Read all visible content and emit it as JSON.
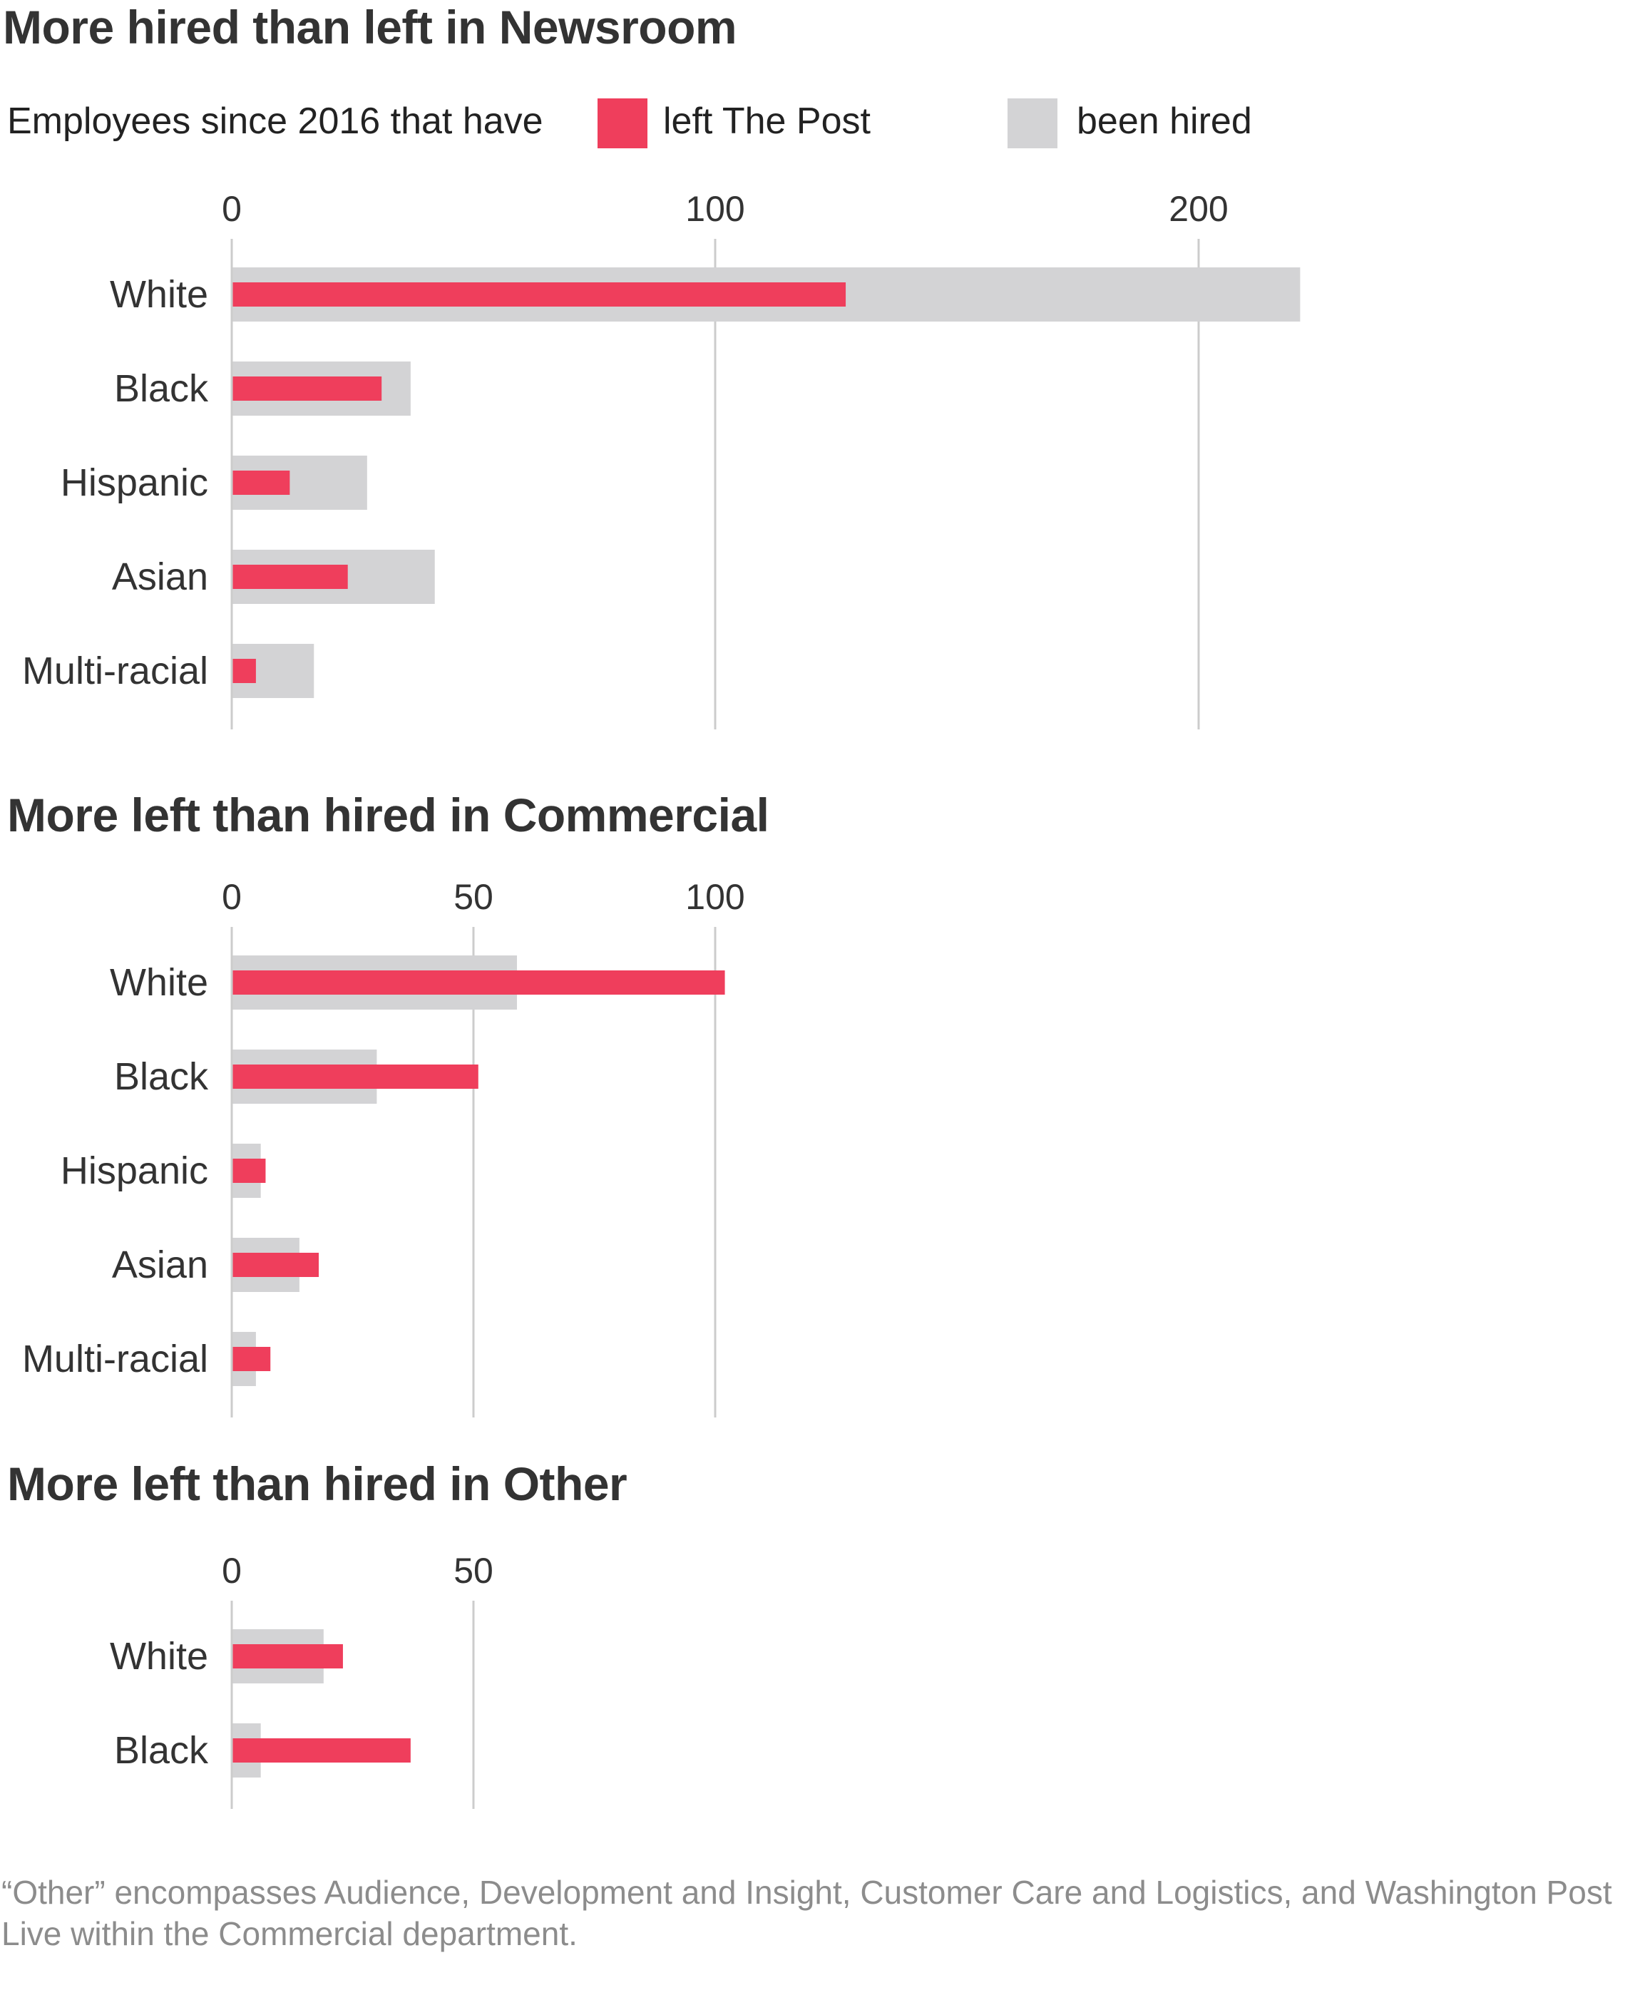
{
  "legend": {
    "lead": "Employees since 2016 that have",
    "left_label": "left The Post",
    "hired_label": "been hired",
    "colors": {
      "left": "#ef3e5c",
      "hired": "#d3d3d5",
      "grid": "#cccccc",
      "text": "#333333"
    }
  },
  "chart_data": [
    {
      "type": "bar",
      "title": "More hired than left in Newsroom",
      "categories": [
        "White",
        "Black",
        "Hispanic",
        "Asian",
        "Multi-racial"
      ],
      "xticks": [
        0,
        100,
        200
      ],
      "series": [
        {
          "name": "been hired",
          "values": [
            221,
            37,
            28,
            42,
            17
          ]
        },
        {
          "name": "left The Post",
          "values": [
            127,
            31,
            12,
            24,
            5
          ]
        }
      ]
    },
    {
      "type": "bar",
      "title": "More left than hired in Commercial",
      "categories": [
        "White",
        "Black",
        "Hispanic",
        "Asian",
        "Multi-racial"
      ],
      "xticks": [
        0,
        50,
        100
      ],
      "series": [
        {
          "name": "been hired",
          "values": [
            59,
            30,
            6,
            14,
            5
          ]
        },
        {
          "name": "left The Post",
          "values": [
            102,
            51,
            7,
            18,
            8
          ]
        }
      ]
    },
    {
      "type": "bar",
      "title": "More left than hired in Other",
      "categories": [
        "White",
        "Black"
      ],
      "xticks": [
        0,
        50
      ],
      "series": [
        {
          "name": "been hired",
          "values": [
            19,
            6
          ]
        },
        {
          "name": "left The Post",
          "values": [
            23,
            37
          ]
        }
      ]
    }
  ],
  "footnote": "“Other” encompasses Audience, Development and Insight, Customer Care and Logistics, and Washington Post Live within the Commercial department."
}
